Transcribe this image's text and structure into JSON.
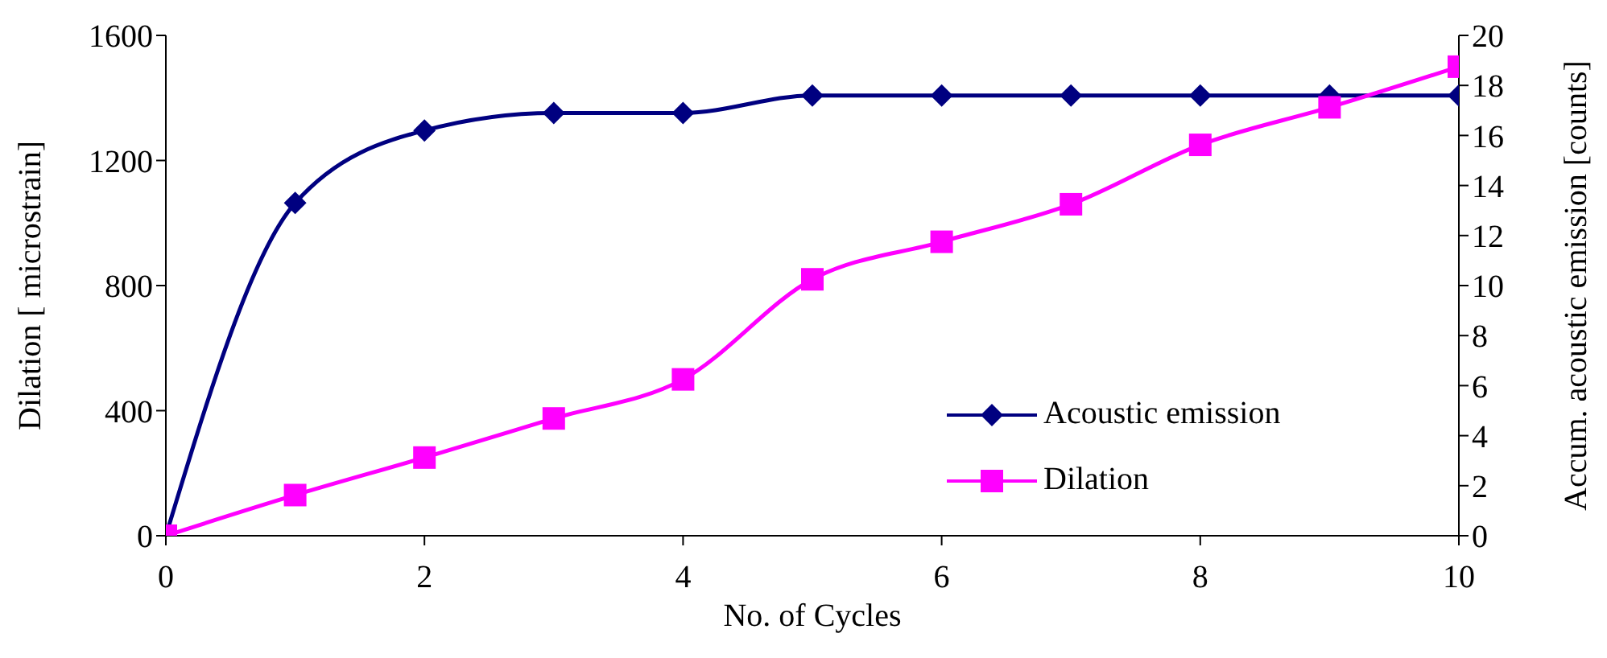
{
  "chart_data": {
    "type": "line",
    "xlabel": "No. of Cycles",
    "ylabel": "Dilation [ microstrain]",
    "y2label": "Accum. acoustic emission [counts]",
    "x": [
      0,
      1,
      2,
      3,
      4,
      5,
      6,
      7,
      8,
      9,
      10
    ],
    "series": [
      {
        "name": "Acoustic emission",
        "color": "#000080",
        "axis": "y2",
        "marker": "diamond",
        "values": [
          0,
          13.3,
          16.2,
          16.9,
          16.9,
          17.6,
          17.6,
          17.6,
          17.6,
          17.6,
          17.6
        ]
      },
      {
        "name": "Dilation",
        "color": "#ff00ff",
        "marker": "square",
        "values": [
          0,
          130,
          250,
          375,
          500,
          820,
          940,
          1060,
          1250,
          1370,
          1500
        ]
      }
    ],
    "xlim": [
      0,
      10
    ],
    "xticks": [
      0,
      2,
      4,
      6,
      8,
      10
    ],
    "ylim": [
      0,
      1600
    ],
    "yticks": [
      0,
      400,
      800,
      1200,
      1600
    ],
    "y2lim": [
      0,
      20
    ],
    "y2ticks": [
      0,
      2,
      4,
      6,
      8,
      10,
      12,
      14,
      16,
      18,
      20
    ],
    "grid": false,
    "legend": "bottom right"
  }
}
